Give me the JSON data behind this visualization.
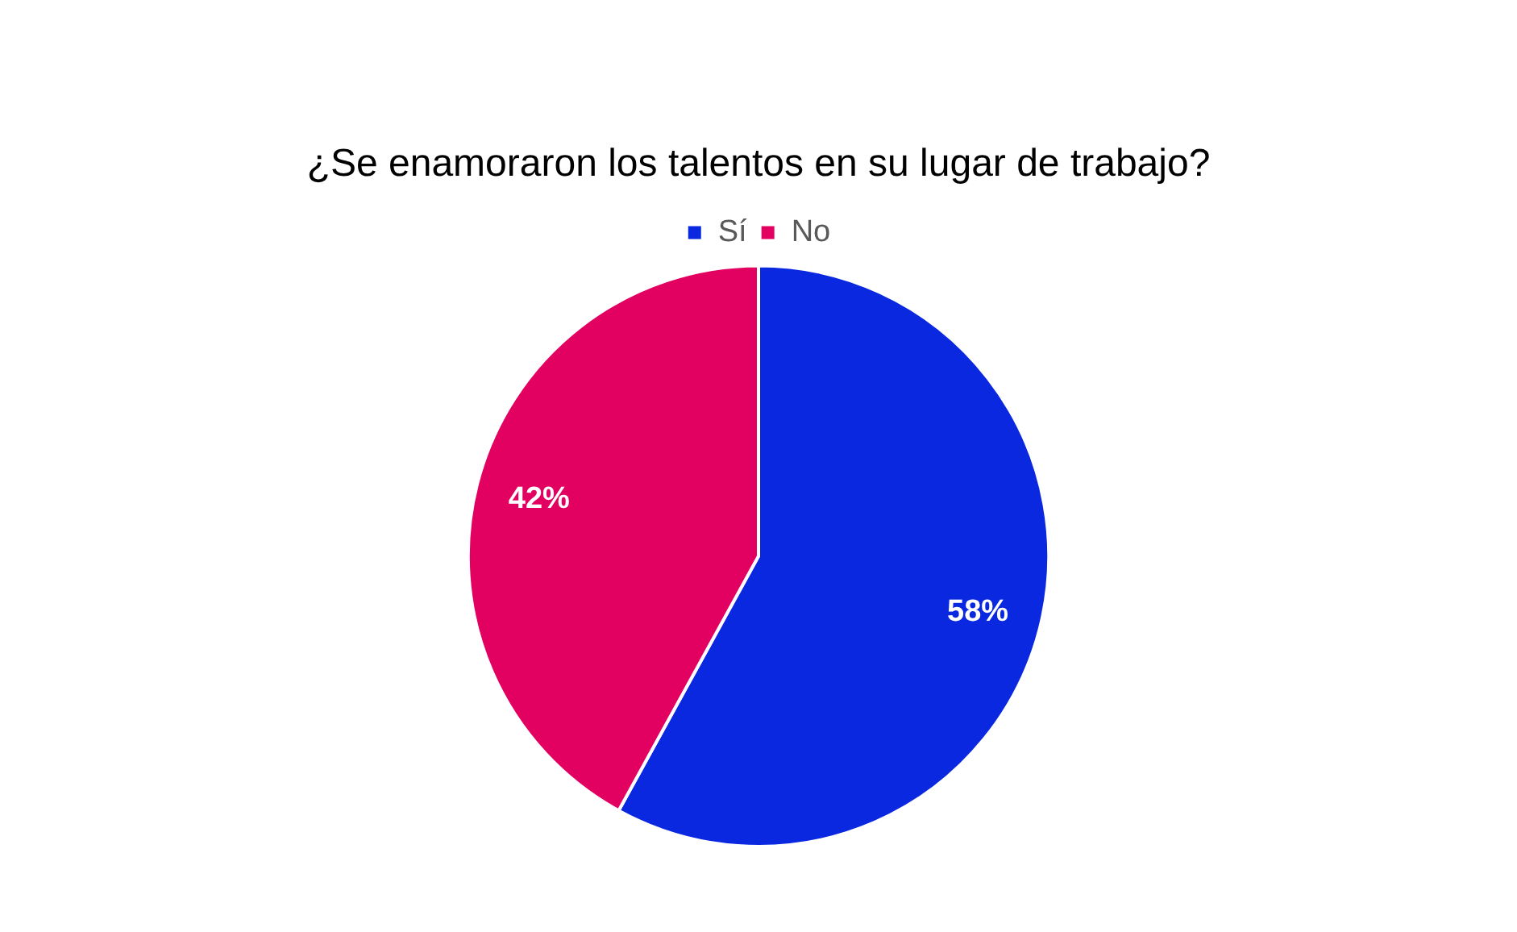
{
  "chart_data": {
    "type": "pie",
    "title": "¿Se enamoraron los talentos en su lugar de trabajo?",
    "categories": [
      "Sí",
      "No"
    ],
    "values": [
      58,
      42
    ],
    "colors": [
      "#0a28e0",
      "#e20060"
    ],
    "value_labels": [
      "58%",
      "42%"
    ],
    "legend": "top"
  }
}
